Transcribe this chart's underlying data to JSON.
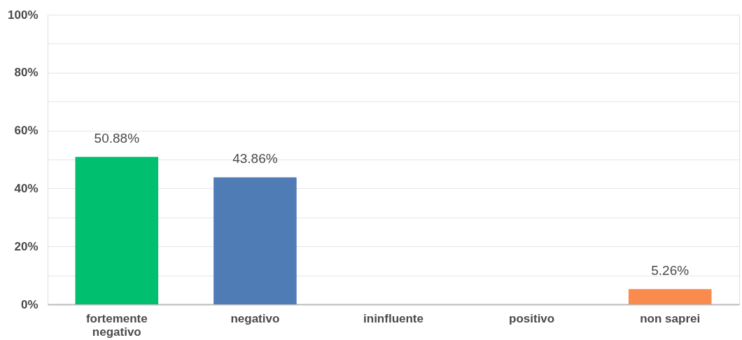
{
  "chart_data": {
    "type": "bar",
    "categories": [
      "fortemente negativo",
      "negativo",
      "ininfluente",
      "positivo",
      "non saprei"
    ],
    "values": [
      50.88,
      43.86,
      0,
      0,
      5.26
    ],
    "colors": [
      "#00bf6f",
      "#507cb6",
      "#6bc8cd",
      "#a0c9e6",
      "#f98b4f"
    ],
    "value_labels": [
      "50.88%",
      "43.86%",
      null,
      null,
      "5.26%"
    ],
    "ylim": [
      0,
      100
    ],
    "yticks": [
      {
        "value": 0,
        "label": "0%"
      },
      {
        "value": 10,
        "label": null
      },
      {
        "value": 20,
        "label": "20%"
      },
      {
        "value": 30,
        "label": null
      },
      {
        "value": 40,
        "label": "40%"
      },
      {
        "value": 50,
        "label": null
      },
      {
        "value": 60,
        "label": "60%"
      },
      {
        "value": 70,
        "label": null
      },
      {
        "value": 80,
        "label": "80%"
      },
      {
        "value": 90,
        "label": null
      },
      {
        "value": 100,
        "label": "100%"
      }
    ],
    "grid": "y",
    "legend": false
  }
}
